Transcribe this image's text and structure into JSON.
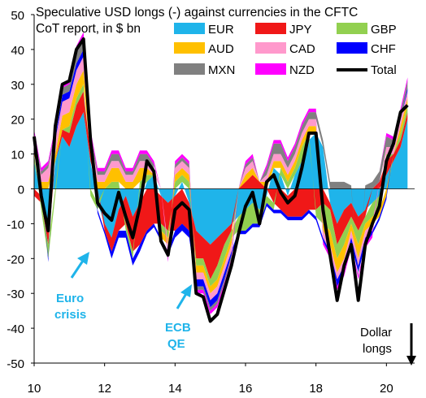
{
  "chart_data": {
    "type": "area",
    "title": "Speculative USD longs (-) against currencies in the CFTC CoT report, in $ bn",
    "title_lines": [
      "Speculative USD longs (-) against currencies in the CFTC",
      "CoT report, in $ bn"
    ],
    "xlabel": "",
    "ylabel": "",
    "xlim": [
      10,
      20.8
    ],
    "ylim": [
      -50,
      50
    ],
    "x_ticks": [
      "10",
      "12",
      "14",
      "16",
      "18",
      "20"
    ],
    "y_ticks": [
      "50",
      "40",
      "30",
      "20",
      "10",
      "0",
      "-10",
      "-20",
      "-30",
      "-40",
      "-50"
    ],
    "grid": false,
    "legend_position": "top",
    "x": [
      10.0,
      10.2,
      10.4,
      10.6,
      10.8,
      11.0,
      11.2,
      11.4,
      11.6,
      11.8,
      12.0,
      12.2,
      12.4,
      12.6,
      12.8,
      13.0,
      13.2,
      13.4,
      13.6,
      13.8,
      14.0,
      14.2,
      14.4,
      14.6,
      14.8,
      15.0,
      15.2,
      15.4,
      15.6,
      15.8,
      16.0,
      16.2,
      16.4,
      16.6,
      16.8,
      17.0,
      17.2,
      17.4,
      17.6,
      17.8,
      18.0,
      18.2,
      18.4,
      18.6,
      18.8,
      19.0,
      19.2,
      19.4,
      19.6,
      19.8,
      20.0,
      20.2,
      20.4,
      20.6
    ],
    "series": [
      {
        "name": "EUR",
        "color": "#1fb4ea",
        "values": [
          8,
          -2,
          -12,
          8,
          15,
          12,
          18,
          22,
          8,
          -4,
          -10,
          -14,
          -6,
          -2,
          -8,
          -4,
          2,
          4,
          -2,
          -4,
          -2,
          2,
          -4,
          -12,
          -14,
          -16,
          -14,
          -12,
          -10,
          -8,
          -6,
          -4,
          -6,
          -2,
          6,
          4,
          -2,
          4,
          8,
          14,
          16,
          12,
          -4,
          -10,
          -6,
          -4,
          -8,
          -6,
          -4,
          -2,
          4,
          8,
          12,
          20
        ]
      },
      {
        "name": "JPY",
        "color": "#f01818",
        "values": [
          -2,
          -2,
          -4,
          0,
          2,
          4,
          6,
          6,
          2,
          0,
          -2,
          -4,
          -6,
          -8,
          -10,
          -12,
          -12,
          -10,
          -8,
          -8,
          -10,
          -10,
          -8,
          -8,
          -6,
          -10,
          -8,
          -4,
          -2,
          0,
          2,
          4,
          2,
          0,
          -4,
          -6,
          -6,
          -8,
          -8,
          -6,
          -6,
          -4,
          -2,
          -6,
          -6,
          -4,
          -4,
          -2,
          0,
          2,
          4,
          2,
          2,
          2
        ]
      },
      {
        "name": "GBP",
        "color": "#92d050",
        "values": [
          2,
          -2,
          -4,
          -2,
          0,
          2,
          2,
          2,
          -2,
          -2,
          0,
          2,
          2,
          -2,
          -2,
          2,
          2,
          0,
          -2,
          -2,
          2,
          2,
          2,
          -2,
          -2,
          -2,
          -4,
          -4,
          -2,
          -4,
          -6,
          -6,
          -4,
          -2,
          -2,
          2,
          2,
          2,
          4,
          2,
          -2,
          -6,
          -6,
          -4,
          -4,
          -2,
          -4,
          -2,
          -4,
          -4,
          2,
          0,
          2,
          2
        ]
      },
      {
        "name": "AUD",
        "color": "#ffc000",
        "values": [
          2,
          2,
          2,
          2,
          4,
          4,
          4,
          4,
          2,
          2,
          2,
          4,
          4,
          2,
          2,
          4,
          2,
          0,
          -2,
          -2,
          2,
          2,
          2,
          -2,
          -2,
          -2,
          -2,
          -2,
          -2,
          0,
          2,
          2,
          0,
          2,
          2,
          2,
          2,
          2,
          2,
          2,
          2,
          -2,
          -4,
          -4,
          -4,
          -2,
          -4,
          -2,
          -2,
          -2,
          -2,
          0,
          2,
          2
        ]
      },
      {
        "name": "CAD",
        "color": "#ff99cc",
        "values": [
          2,
          2,
          4,
          4,
          4,
          4,
          4,
          4,
          2,
          2,
          2,
          2,
          2,
          2,
          2,
          2,
          2,
          2,
          0,
          -2,
          2,
          2,
          2,
          -2,
          -2,
          -2,
          -2,
          -2,
          -2,
          0,
          2,
          2,
          0,
          2,
          2,
          2,
          2,
          2,
          2,
          2,
          2,
          -2,
          -2,
          -2,
          -2,
          -2,
          -2,
          -2,
          -2,
          0,
          2,
          2,
          2,
          2
        ]
      },
      {
        "name": "CHF",
        "color": "#0000ff",
        "values": [
          1,
          0,
          -1,
          1,
          2,
          2,
          2,
          2,
          0,
          -1,
          -1,
          -2,
          -2,
          -2,
          -2,
          -2,
          -1,
          -1,
          -1,
          -1,
          -2,
          -2,
          -2,
          -2,
          -2,
          -2,
          -2,
          -2,
          -1,
          -1,
          -1,
          -1,
          -1,
          -1,
          -1,
          -1,
          -1,
          -1,
          -1,
          -1,
          -1,
          -1,
          -1,
          -2,
          -2,
          -2,
          -2,
          -2,
          -1,
          -1,
          -1,
          0,
          0,
          1
        ]
      },
      {
        "name": "MXN",
        "color": "#808080",
        "values": [
          1,
          1,
          1,
          2,
          2,
          2,
          3,
          3,
          2,
          1,
          1,
          2,
          2,
          1,
          1,
          2,
          2,
          1,
          -1,
          -1,
          1,
          1,
          1,
          -1,
          -1,
          -1,
          -1,
          -1,
          -1,
          0,
          1,
          1,
          0,
          2,
          3,
          3,
          2,
          2,
          2,
          2,
          2,
          2,
          2,
          2,
          2,
          1,
          -1,
          1,
          2,
          3,
          3,
          2,
          2,
          2
        ]
      },
      {
        "name": "NZD",
        "color": "#ff00ff",
        "values": [
          1,
          1,
          1,
          1,
          1,
          1,
          2,
          2,
          1,
          1,
          1,
          1,
          1,
          1,
          1,
          1,
          1,
          1,
          0,
          -1,
          1,
          1,
          1,
          -1,
          -1,
          -1,
          -1,
          -1,
          -1,
          0,
          1,
          1,
          0,
          1,
          1,
          1,
          1,
          1,
          1,
          1,
          1,
          -1,
          -1,
          -1,
          -1,
          -1,
          -1,
          -1,
          -1,
          0,
          1,
          1,
          1,
          1
        ]
      }
    ],
    "total": {
      "name": "Total",
      "color": "#000000",
      "values": [
        15,
        -2,
        -12,
        18,
        30,
        31,
        40,
        43,
        14,
        -4,
        -7,
        -9,
        -1,
        -8,
        -14,
        -5,
        8,
        5,
        -15,
        -19,
        -6,
        -4,
        -6,
        -30,
        -31,
        -38,
        -36,
        -29,
        -22,
        -13,
        -5,
        -1,
        -10,
        2,
        4,
        -1,
        -4,
        -2,
        6,
        16,
        16,
        -6,
        -19,
        -32,
        -22,
        -16,
        -32,
        -16,
        -10,
        -5,
        8,
        13,
        22,
        24
      ]
    },
    "annotations": [
      {
        "text_lines": [
          "Euro",
          "crisis"
        ],
        "color": "#1fb4ea",
        "arrow": true
      },
      {
        "text_lines": [
          "ECB",
          "QE"
        ],
        "color": "#1fb4ea",
        "arrow": true
      },
      {
        "text_lines": [
          "Dollar",
          "longs"
        ],
        "color": "#000000",
        "arrow": true
      }
    ]
  }
}
